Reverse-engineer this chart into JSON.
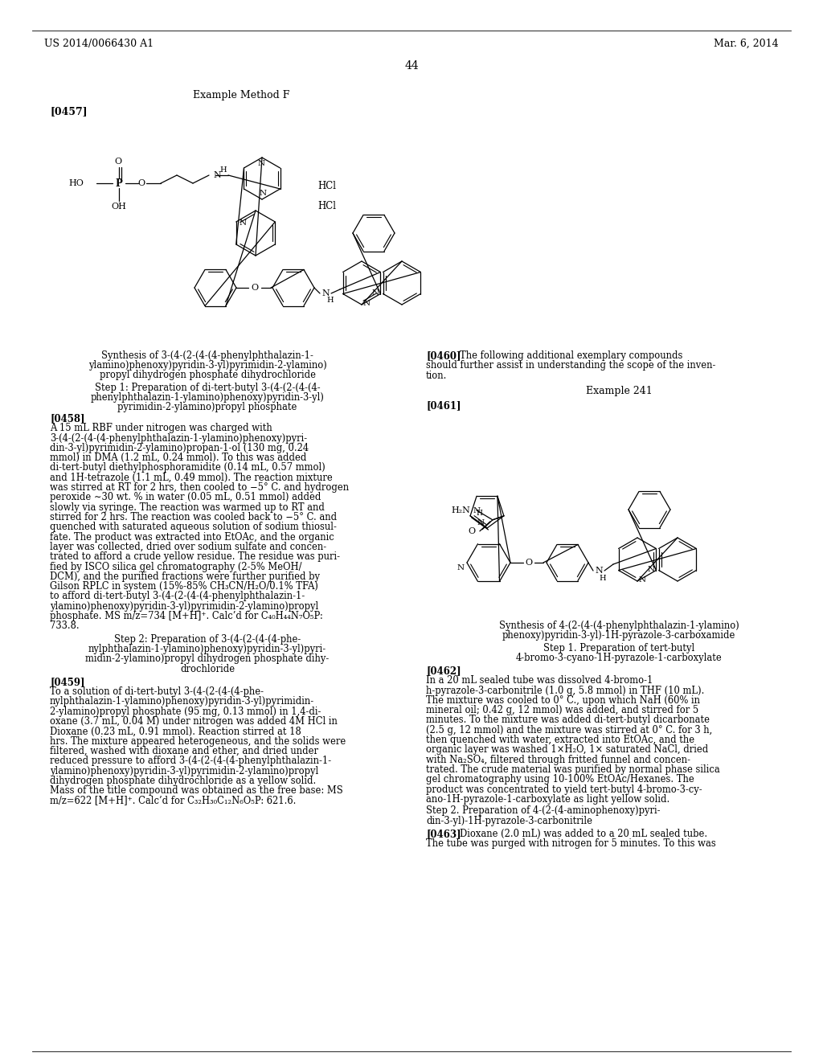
{
  "background_color": "#ffffff",
  "header_left": "US 2014/0066430 A1",
  "header_right": "Mar. 6, 2014",
  "page_number": "44",
  "left_col_lines": [
    "Synthesis of 3-(4-(2-(4-(4-phenylphthalazin-1-",
    "ylamino)phenoxy)pyridin-3-yl)pyrimidin-2-ylamino)",
    "propyl dihydrogen phosphate dihydrochloride",
    "",
    "Step 1: Preparation of di-tert-butyl 3-(4-(2-(4-(4-",
    "phenylphthalazin-1-ylamino)phenoxy)pyridin-3-yl)",
    "pyrimidin-2-ylamino)propyl phosphate",
    "",
    "[0458]   A 15 mL RBF under nitrogen was charged with",
    "3-(4-(2-(4-(4-phenylphthalazin-1-ylamino)phenoxy)pyri-",
    "din-3-yl)pyrimidin-2-ylamino)propan-1-ol (130 mg, 0.24",
    "mmol) in DMA (1.2 mL, 0.24 mmol). To this was added",
    "di-tert-butyl diethylphosphoramidite (0.14 mL, 0.57 mmol)",
    "and 1H-tetrazole (1.1 mL, 0.49 mmol). The reaction mixture",
    "was stirred at RT for 2 hrs, then cooled to −5° C. and hydrogen",
    "peroxide ∼30 wt. % in water (0.05 mL, 0.51 mmol) added",
    "slowly via syringe. The reaction was warmed up to RT and",
    "stirred for 2 hrs. The reaction was cooled back to −5° C. and",
    "quenched with saturated aqueous solution of sodium thiosul-",
    "fate. The product was extracted into EtOAc, and the organic",
    "layer was collected, dried over sodium sulfate and concen-",
    "trated to afford a crude yellow residue. The residue was puri-",
    "fied by ISCO silica gel chromatography (2-5% MeOH/",
    "DCM), and the purified fractions were further purified by",
    "Gilson RPLC in system (15%-85% CH₃CN/H₂O/0.1% TFA)",
    "to afford di-tert-butyl 3-(4-(2-(4-(4-phenylphthalazin-1-",
    "ylamino)phenoxy)pyridin-3-yl)pyrimidin-2-ylamino)propyl",
    "phosphate. MS m/z=734 [M+H]⁺. Calc’d for C₄₀H₄₄N₇O₅P:",
    "733.8.",
    "",
    "Step 2: Preparation of 3-(4-(2-(4-(4-phe-",
    "nylphthalazin-1-ylamino)phenoxy)pyridin-3-yl)pyri-",
    "midin-2-ylamino)propyl dihydrogen phosphate dihy-",
    "drochloride",
    "",
    "[0459]   To a solution of di-tert-butyl 3-(4-(2-(4-(4-phe-",
    "nylphthalazin-1-ylamino)phenoxy)pyridin-3-yl)pyrimidin-",
    "2-ylamino)propyl phosphate (95 mg, 0.13 mmol) in 1,4-di-",
    "oxane (3.7 mL, 0.04 M) under nitrogen was added 4M HCl in",
    "Dioxane (0.23 mL, 0.91 mmol). Reaction stirred at 18",
    "hrs. The mixture appeared heterogeneous, and the solids were",
    "filtered, washed with dioxane and ether, and dried under",
    "reduced pressure to afford 3-(4-(2-(4-(4-phenylphthalazin-1-",
    "ylamino)phenoxy)pyridin-3-yl)pyrimidin-2-ylamino)propyl",
    "dihydrogen phosphate dihydrochloride as a yellow solid.",
    "Mass of the title compound was obtained as the free base: MS",
    "m/z=622 [M+H]⁺. Calc’d for C₃₂H₃₀C₁₂N₆O₅P: 621.6."
  ],
  "right_col_lines_top": [
    "[0460]   The following additional exemplary compounds",
    "should further assist in understanding the scope of the inven-",
    "tion."
  ],
  "right_col_lines_bot": [
    "Synthesis of 4-(2-(4-(4-phenylphthalazin-1-ylamino)",
    "phenoxy)pyridin-3-yl)-1H-pyrazole-3-carboxamide",
    "",
    "Step 1. Preparation of tert-butyl",
    "4-bromo-3-cyano-1H-pyrazole-1-carboxylate",
    "",
    "[0462]   In a 20 mL sealed tube was dissolved 4-bromo-1",
    "h-pyrazole-3-carbonitrile (1.0 g, 5.8 mmol) in THF (10 mL).",
    "The mixture was cooled to 0° C., upon which NaH (60% in",
    "mineral oil; 0.42 g, 12 mmol) was added, and stirred for 5",
    "minutes. To the mixture was added di-tert-butyl dicarbonate",
    "(2.5 g, 12 mmol) and the mixture was stirred at 0° C. for 3 h,",
    "then quenched with water, extracted into EtOAc, and the",
    "organic layer was washed 1×H₂O, 1× saturated NaCl, dried",
    "with Na₂SO₄, filtered through fritted funnel and concen-",
    "trated. The crude material was purified by normal phase silica",
    "gel chromatography using 10-100% EtOAc/Hexanes. The",
    "product was concentrated to yield tert-butyl 4-bromo-3-cy-",
    "ano-1H-pyrazole-1-carboxylate as light yellow solid.",
    "",
    "Step 2. Preparation of 4-(2-(4-aminophenoxy)pyri-",
    "din-3-yl)-1H-pyrazole-3-carbonitrile",
    "",
    "[0463]   Dioxane (2.0 mL) was added to a 20 mL sealed tube.",
    "The tube was purged with nitrogen for 5 minutes. To this was"
  ]
}
